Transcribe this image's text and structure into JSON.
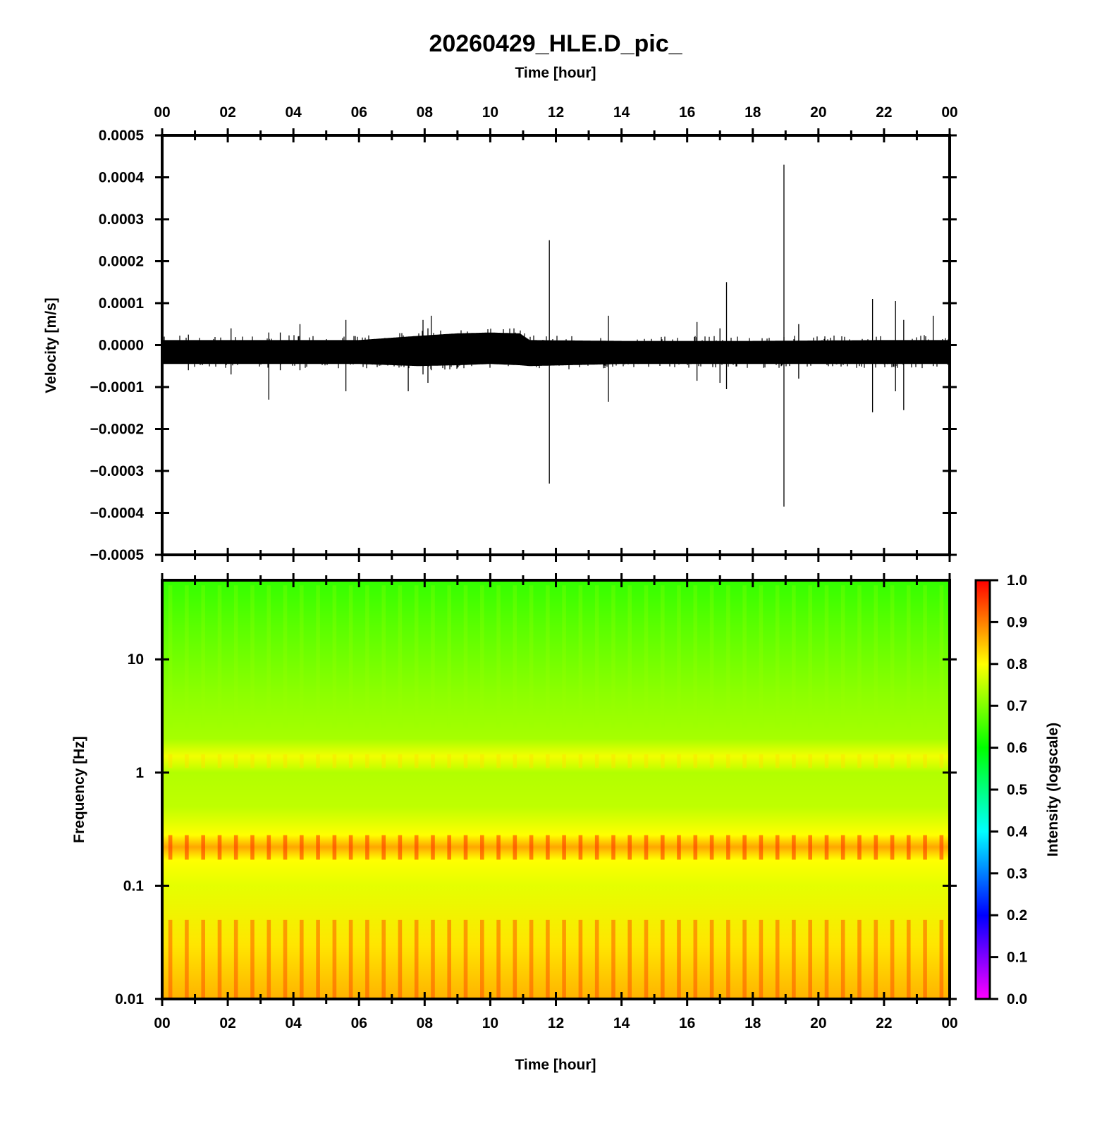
{
  "title": "20260429_HLE.D_pic_",
  "chart_data": [
    {
      "type": "line",
      "name": "waveform",
      "xlabel_top": "Time [hour]",
      "ylabel": "Velocity [m/s]",
      "xlim": [
        0,
        24
      ],
      "ylim": [
        -0.0005,
        0.0005
      ],
      "x_ticks": [
        "00",
        "02",
        "04",
        "06",
        "08",
        "10",
        "12",
        "14",
        "16",
        "18",
        "20",
        "22",
        "00"
      ],
      "y_ticks": [
        "0.0005",
        "0.0004",
        "0.0003",
        "0.0002",
        "0.0001",
        "0.0000",
        "−0.0001",
        "−0.0002",
        "−0.0003",
        "−0.0004",
        "−0.0005"
      ],
      "y_tick_values": [
        0.0005,
        0.0004,
        0.0003,
        0.0002,
        0.0001,
        0,
        -0.0001,
        -0.0002,
        -0.0003,
        -0.0004,
        -0.0005
      ],
      "noise_band": {
        "hours": [
          0,
          2,
          4,
          6,
          7.8,
          9,
          10,
          10.9,
          11.2,
          14,
          18,
          22,
          24
        ],
        "upper": [
          1.2e-05,
          1.2e-05,
          1.2e-05,
          1.2e-05,
          2.2e-05,
          2.8e-05,
          3e-05,
          2.8e-05,
          1.2e-05,
          1e-05,
          1e-05,
          1.2e-05,
          1.2e-05
        ],
        "lower": [
          -4.5e-05,
          -4.5e-05,
          -4.5e-05,
          -4.5e-05,
          -5e-05,
          -4.8e-05,
          -4.5e-05,
          -4.8e-05,
          -5e-05,
          -4.5e-05,
          -4.5e-05,
          -4.5e-05,
          -4.5e-05
        ]
      },
      "spikes": [
        {
          "t": 0.8,
          "max": 2.5e-05,
          "min": -6e-05
        },
        {
          "t": 2.1,
          "max": 4e-05,
          "min": -7e-05
        },
        {
          "t": 3.25,
          "max": 3e-05,
          "min": -0.00013
        },
        {
          "t": 3.6,
          "max": 3e-05,
          "min": -6e-05
        },
        {
          "t": 4.2,
          "max": 5e-05,
          "min": -6e-05
        },
        {
          "t": 5.6,
          "max": 6e-05,
          "min": -0.00011
        },
        {
          "t": 7.5,
          "max": 2e-05,
          "min": -0.00011
        },
        {
          "t": 7.95,
          "max": 6e-05,
          "min": -7e-05
        },
        {
          "t": 8.2,
          "max": 7e-05,
          "min": -6e-05
        },
        {
          "t": 8.1,
          "max": 4e-05,
          "min": -9e-05
        },
        {
          "t": 11.8,
          "max": 0.00025,
          "min": -0.00033
        },
        {
          "t": 13.6,
          "max": 7e-05,
          "min": -0.000135
        },
        {
          "t": 16.3,
          "max": 5.5e-05,
          "min": -8.5e-05
        },
        {
          "t": 17.2,
          "max": 0.00015,
          "min": -0.000105
        },
        {
          "t": 17.0,
          "max": 4e-05,
          "min": -9e-05
        },
        {
          "t": 18.95,
          "max": 0.00043,
          "min": -0.000385
        },
        {
          "t": 19.4,
          "max": 5e-05,
          "min": -8e-05
        },
        {
          "t": 21.65,
          "max": 0.00011,
          "min": -0.00016
        },
        {
          "t": 22.35,
          "max": 0.000105,
          "min": -0.00011
        },
        {
          "t": 22.6,
          "max": 6e-05,
          "min": -0.000155
        },
        {
          "t": 23.5,
          "max": 7e-05,
          "min": -5e-05
        }
      ]
    },
    {
      "type": "heatmap",
      "name": "spectrogram",
      "xlabel": "Time [hour]",
      "ylabel": "Frequency [Hz]",
      "xlim": [
        0,
        24
      ],
      "ylim": [
        0.01,
        50
      ],
      "yscale": "log",
      "x_ticks": [
        "00",
        "02",
        "04",
        "06",
        "08",
        "10",
        "12",
        "14",
        "16",
        "18",
        "20",
        "22",
        "00"
      ],
      "y_ticks": [
        "10",
        "1",
        "0.1",
        "0.01"
      ],
      "y_tick_values": [
        10,
        1,
        0.1,
        0.01
      ],
      "column_period_hours": 0.5,
      "intensity_profile": {
        "freq_hz": [
          50,
          20,
          5,
          2,
          1.4,
          1.2,
          1.0,
          0.5,
          0.28,
          0.22,
          0.17,
          0.1,
          0.03,
          0.01
        ],
        "value": [
          0.64,
          0.67,
          0.71,
          0.73,
          0.79,
          0.77,
          0.74,
          0.75,
          0.8,
          0.87,
          0.8,
          0.78,
          0.82,
          0.86
        ]
      },
      "colorbar": {
        "label": "Intensity (logscale)",
        "range": [
          0.0,
          1.0
        ],
        "ticks": [
          "1.0",
          "0.9",
          "0.8",
          "0.7",
          "0.6",
          "0.5",
          "0.4",
          "0.3",
          "0.2",
          "0.1",
          "0.0"
        ],
        "tick_values": [
          1.0,
          0.9,
          0.8,
          0.7,
          0.6,
          0.5,
          0.4,
          0.3,
          0.2,
          0.1,
          0.0
        ],
        "colors": [
          "#ff00ff",
          "#0000ff",
          "#00ffff",
          "#00ff00",
          "#ffff00",
          "#ff0000"
        ]
      }
    }
  ]
}
